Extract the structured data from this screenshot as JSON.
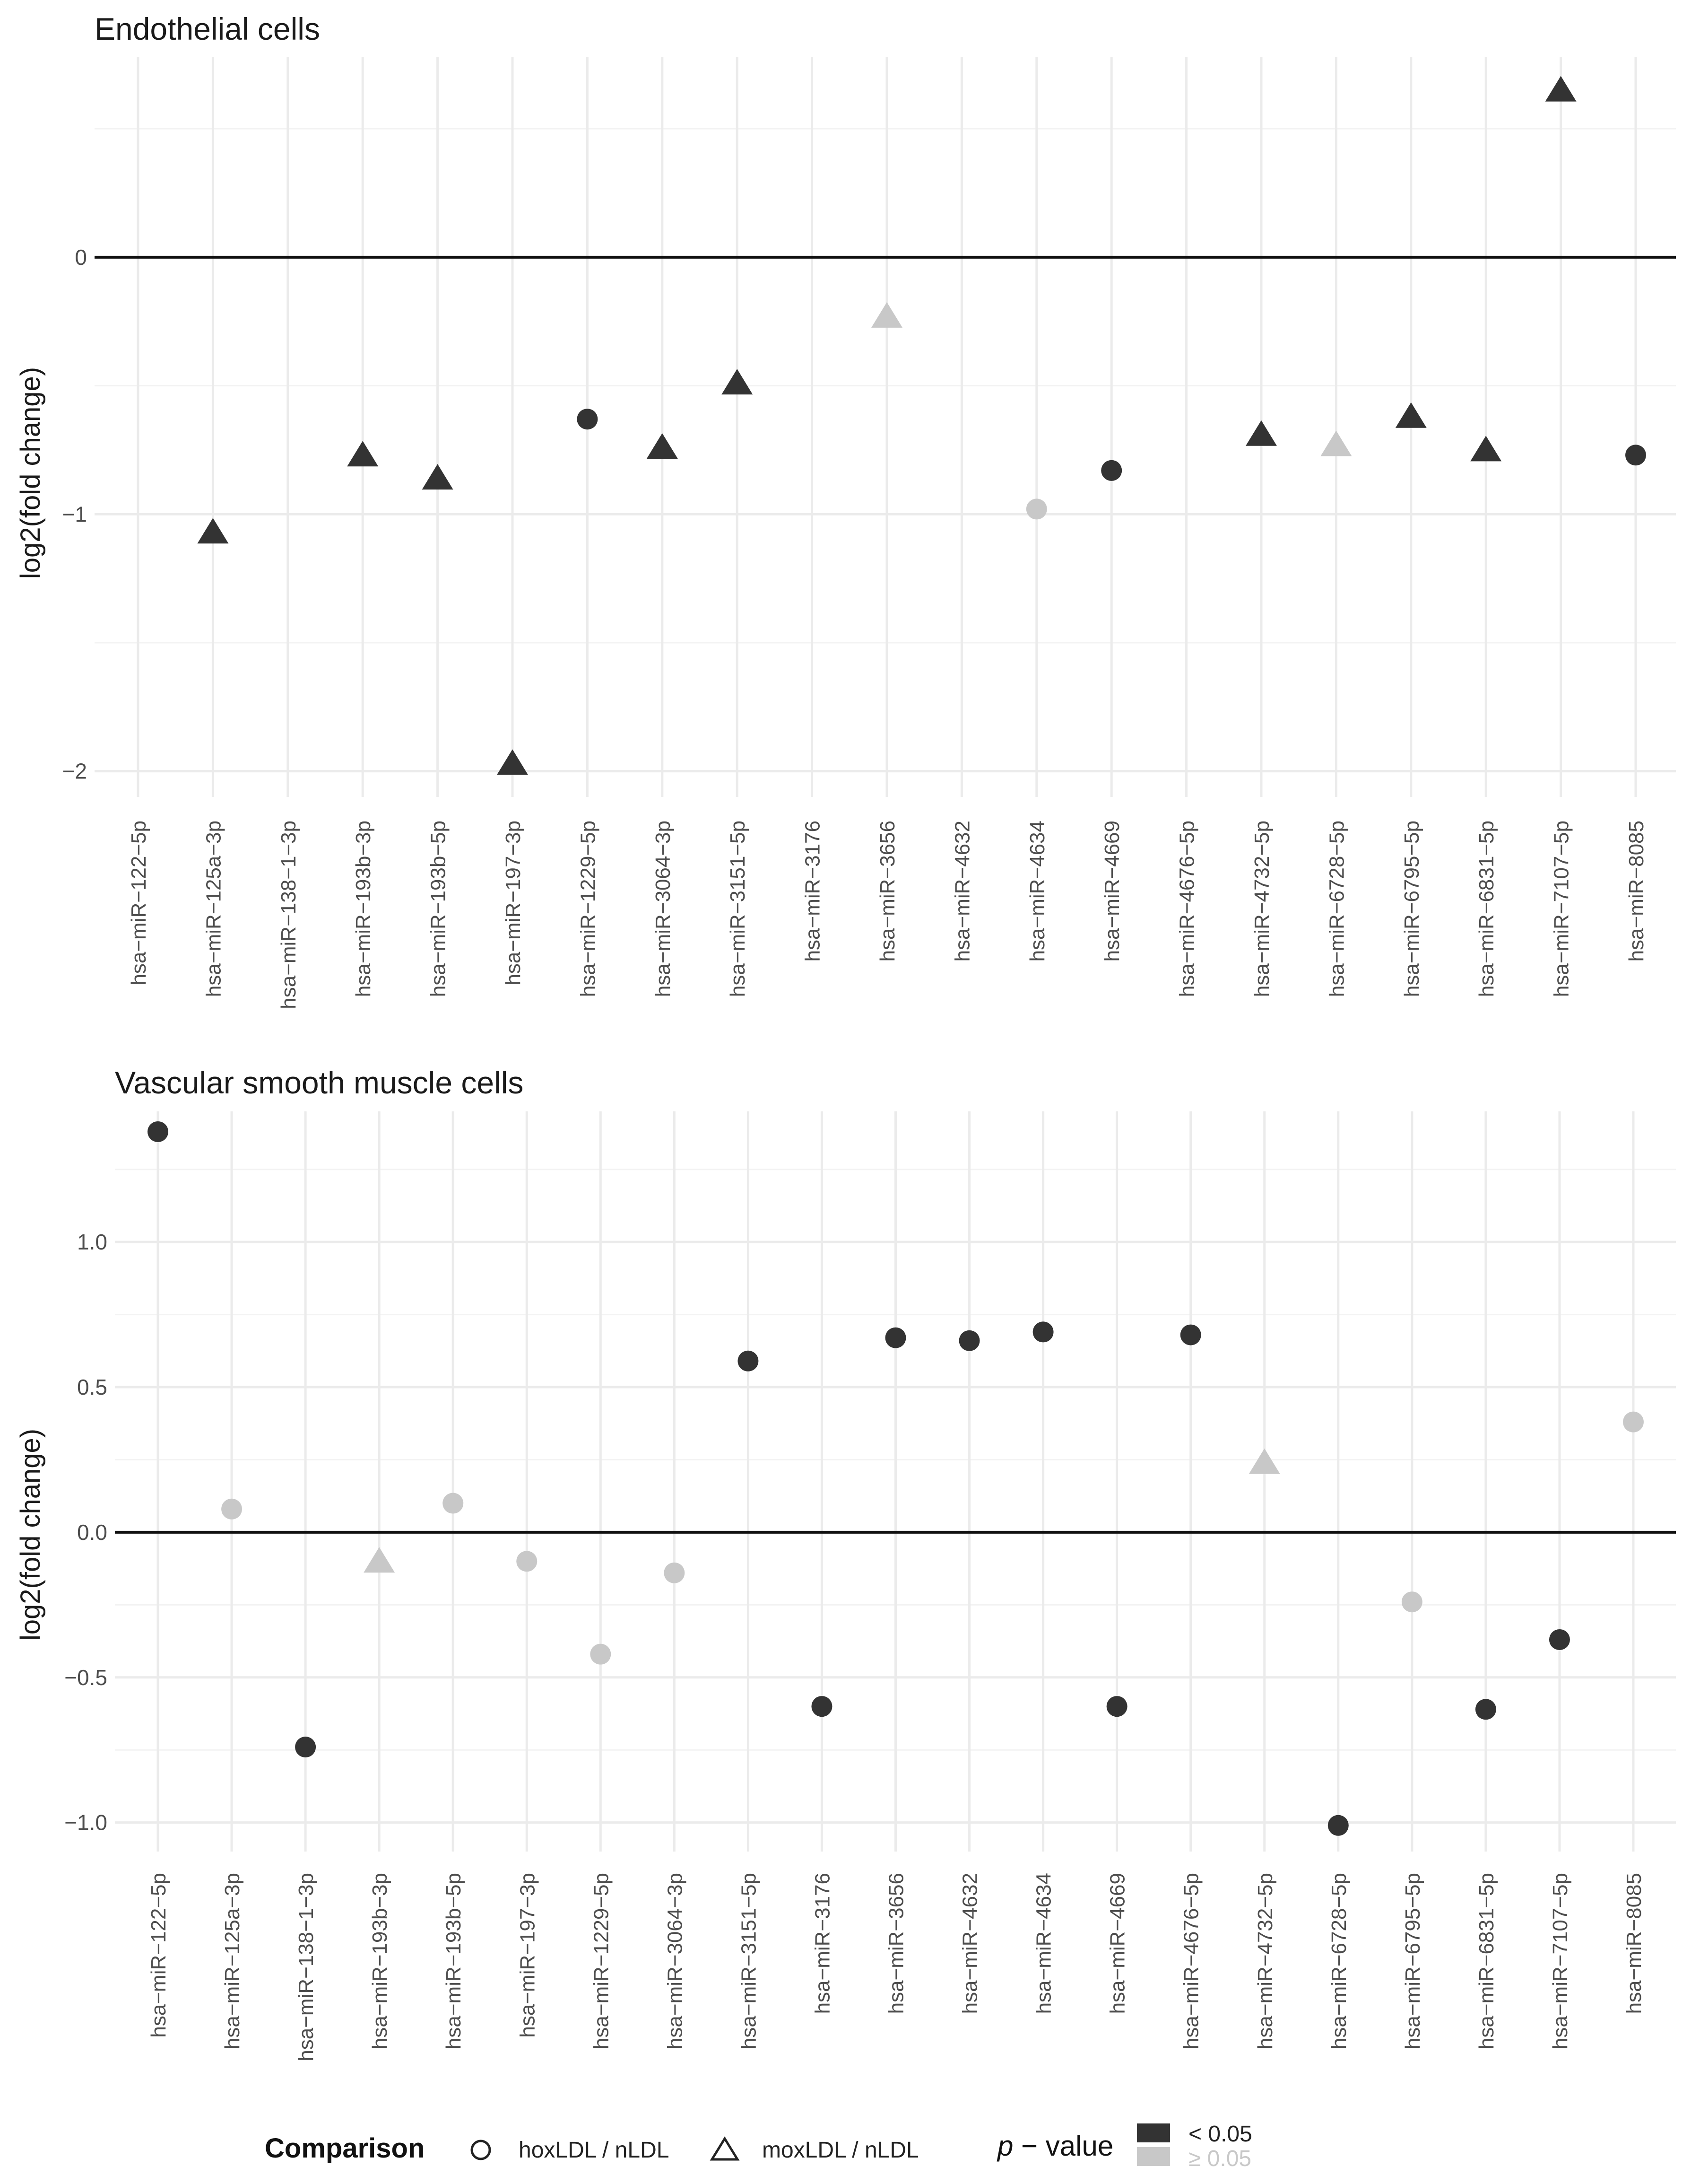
{
  "chart_data": [
    {
      "type": "scatter",
      "title": "Endothelial cells",
      "xlabel": "",
      "ylabel": "log2(fold change)",
      "ylim": [
        -2.1,
        0.78
      ],
      "yticks": [
        0,
        -1,
        -2
      ],
      "ytick_labels": [
        "0",
        "−1",
        "−2"
      ],
      "categories": [
        "hsa−miR−122−5p",
        "hsa−miR−125a−3p",
        "hsa−miR−138−1−3p",
        "hsa−miR−193b−3p",
        "hsa−miR−193b−5p",
        "hsa−miR−197−3p",
        "hsa−miR−1229−5p",
        "hsa−miR−3064−3p",
        "hsa−miR−3151−5p",
        "hsa−miR−3176",
        "hsa−miR−3656",
        "hsa−miR−4632",
        "hsa−miR−4634",
        "hsa−miR−4669",
        "hsa−miR−4676−5p",
        "hsa−miR−4732−5p",
        "hsa−miR−6728−5p",
        "hsa−miR−6795−5p",
        "hsa−miR−6831−5p",
        "hsa−miR−7107−5p",
        "hsa−miR−8085"
      ],
      "points": [
        {
          "category": "hsa−miR−125a−3p",
          "y": -1.07,
          "comparison": "moxLDL / nLDL",
          "significant": true
        },
        {
          "category": "hsa−miR−193b−3p",
          "y": -0.77,
          "comparison": "moxLDL / nLDL",
          "significant": true
        },
        {
          "category": "hsa−miR−193b−5p",
          "y": -0.86,
          "comparison": "moxLDL / nLDL",
          "significant": true
        },
        {
          "category": "hsa−miR−197−3p",
          "y": -1.97,
          "comparison": "moxLDL / nLDL",
          "significant": true
        },
        {
          "category": "hsa−miR−1229−5p",
          "y": -0.63,
          "comparison": "hoxLDL / nLDL",
          "significant": true
        },
        {
          "category": "hsa−miR−3064−3p",
          "y": -0.74,
          "comparison": "moxLDL / nLDL",
          "significant": true
        },
        {
          "category": "hsa−miR−3151−5p",
          "y": -0.49,
          "comparison": "moxLDL / nLDL",
          "significant": true
        },
        {
          "category": "hsa−miR−3656",
          "y": -0.23,
          "comparison": "moxLDL / nLDL",
          "significant": false
        },
        {
          "category": "hsa−miR−4634",
          "y": -0.98,
          "comparison": "hoxLDL / nLDL",
          "significant": false
        },
        {
          "category": "hsa−miR−4669",
          "y": -0.83,
          "comparison": "hoxLDL / nLDL",
          "significant": true
        },
        {
          "category": "hsa−miR−4732−5p",
          "y": -0.69,
          "comparison": "moxLDL / nLDL",
          "significant": true
        },
        {
          "category": "hsa−miR−6728−5p",
          "y": -0.73,
          "comparison": "moxLDL / nLDL",
          "significant": false
        },
        {
          "category": "hsa−miR−6795−5p",
          "y": -0.62,
          "comparison": "moxLDL / nLDL",
          "significant": true
        },
        {
          "category": "hsa−miR−6831−5p",
          "y": -0.75,
          "comparison": "moxLDL / nLDL",
          "significant": true
        },
        {
          "category": "hsa−miR−7107−5p",
          "y": 0.65,
          "comparison": "moxLDL / nLDL",
          "significant": true
        },
        {
          "category": "hsa−miR−8085",
          "y": -0.77,
          "comparison": "hoxLDL / nLDL",
          "significant": true
        }
      ]
    },
    {
      "type": "scatter",
      "title": "Vascular smooth muscle cells",
      "xlabel": "",
      "ylabel": "log2(fold change)",
      "ylim": [
        -1.1,
        1.45
      ],
      "yticks": [
        1.0,
        0.5,
        0.0,
        -0.5,
        -1.0
      ],
      "ytick_labels": [
        "1.0",
        "0.5",
        "0.0",
        "−0.5",
        "−1.0"
      ],
      "categories": [
        "hsa−miR−122−5p",
        "hsa−miR−125a−3p",
        "hsa−miR−138−1−3p",
        "hsa−miR−193b−3p",
        "hsa−miR−193b−5p",
        "hsa−miR−197−3p",
        "hsa−miR−1229−5p",
        "hsa−miR−3064−3p",
        "hsa−miR−3151−5p",
        "hsa−miR−3176",
        "hsa−miR−3656",
        "hsa−miR−4632",
        "hsa−miR−4634",
        "hsa−miR−4669",
        "hsa−miR−4676−5p",
        "hsa−miR−4732−5p",
        "hsa−miR−6728−5p",
        "hsa−miR−6795−5p",
        "hsa−miR−6831−5p",
        "hsa−miR−7107−5p",
        "hsa−miR−8085"
      ],
      "points": [
        {
          "category": "hsa−miR−122−5p",
          "y": 1.38,
          "comparison": "hoxLDL / nLDL",
          "significant": true
        },
        {
          "category": "hsa−miR−125a−3p",
          "y": 0.08,
          "comparison": "hoxLDL / nLDL",
          "significant": false
        },
        {
          "category": "hsa−miR−138−1−3p",
          "y": -0.74,
          "comparison": "hoxLDL / nLDL",
          "significant": true
        },
        {
          "category": "hsa−miR−193b−3p",
          "y": -0.1,
          "comparison": "moxLDL / nLDL",
          "significant": false
        },
        {
          "category": "hsa−miR−193b−5p",
          "y": 0.1,
          "comparison": "hoxLDL / nLDL",
          "significant": false
        },
        {
          "category": "hsa−miR−197−3p",
          "y": -0.1,
          "comparison": "hoxLDL / nLDL",
          "significant": false
        },
        {
          "category": "hsa−miR−1229−5p",
          "y": -0.42,
          "comparison": "hoxLDL / nLDL",
          "significant": false
        },
        {
          "category": "hsa−miR−3064−3p",
          "y": -0.14,
          "comparison": "hoxLDL / nLDL",
          "significant": false
        },
        {
          "category": "hsa−miR−3151−5p",
          "y": 0.59,
          "comparison": "hoxLDL / nLDL",
          "significant": true
        },
        {
          "category": "hsa−miR−3176",
          "y": -0.6,
          "comparison": "hoxLDL / nLDL",
          "significant": true
        },
        {
          "category": "hsa−miR−3656",
          "y": 0.67,
          "comparison": "hoxLDL / nLDL",
          "significant": true
        },
        {
          "category": "hsa−miR−4632",
          "y": 0.66,
          "comparison": "hoxLDL / nLDL",
          "significant": true
        },
        {
          "category": "hsa−miR−4634",
          "y": 0.69,
          "comparison": "hoxLDL / nLDL",
          "significant": true
        },
        {
          "category": "hsa−miR−4669",
          "y": -0.6,
          "comparison": "hoxLDL / nLDL",
          "significant": true
        },
        {
          "category": "hsa−miR−4676−5p",
          "y": 0.68,
          "comparison": "hoxLDL / nLDL",
          "significant": true
        },
        {
          "category": "hsa−miR−4732−5p",
          "y": 0.24,
          "comparison": "moxLDL / nLDL",
          "significant": false
        },
        {
          "category": "hsa−miR−6728−5p",
          "y": -1.01,
          "comparison": "hoxLDL / nLDL",
          "significant": true
        },
        {
          "category": "hsa−miR−6795−5p",
          "y": -0.24,
          "comparison": "hoxLDL / nLDL",
          "significant": false
        },
        {
          "category": "hsa−miR−6831−5p",
          "y": -0.61,
          "comparison": "hoxLDL / nLDL",
          "significant": true
        },
        {
          "category": "hsa−miR−7107−5p",
          "y": -0.37,
          "comparison": "hoxLDL / nLDL",
          "significant": true
        },
        {
          "category": "hsa−miR−8085",
          "y": 0.38,
          "comparison": "hoxLDL / nLDL",
          "significant": false
        }
      ]
    }
  ],
  "legend": {
    "comparison_title": "Comparison",
    "comparison_items": [
      {
        "label": "hoxLDL / nLDL",
        "shape": "circle"
      },
      {
        "label": "moxLDL / nLDL",
        "shape": "triangle"
      }
    ],
    "pvalue_title_italic": "p",
    "pvalue_title_rest": " − value",
    "pvalue_items": [
      {
        "label": "< 0.05",
        "color": "#333333"
      },
      {
        "label": "≥ 0.05",
        "color": "#c8c8c8"
      }
    ]
  },
  "colors": {
    "significant": "#333333",
    "not_significant": "#c8c8c8",
    "zero_line": "#111111",
    "grid": "#ebebeb"
  }
}
